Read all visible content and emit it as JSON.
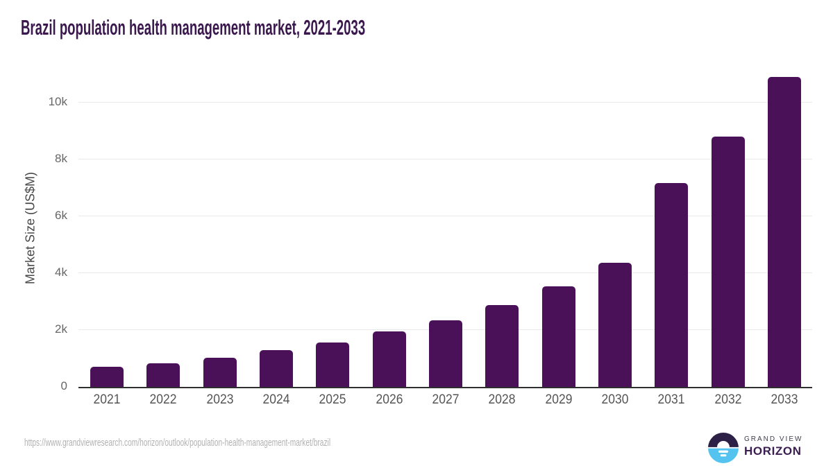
{
  "chart_data": {
    "type": "bar",
    "title": "Brazil population health management market, 2021-2033",
    "xlabel": "",
    "ylabel": "Market Size (US$M)",
    "categories": [
      "2021",
      "2022",
      "2023",
      "2024",
      "2025",
      "2026",
      "2027",
      "2028",
      "2029",
      "2030",
      "2031",
      "2032",
      "2033"
    ],
    "values": [
      700,
      840,
      1030,
      1290,
      1560,
      1950,
      2350,
      2890,
      3540,
      4370,
      7170,
      8810,
      10920
    ],
    "ytick_values": [
      0,
      2000,
      4000,
      6000,
      8000,
      10000
    ],
    "ytick_labels": [
      "0",
      "2k",
      "4k",
      "6k",
      "8k",
      "10k"
    ],
    "ylim": [
      0,
      11230
    ],
    "grid": true,
    "legend": false,
    "bar_color": "#4a1159",
    "gridline_color": "#e9e9e9",
    "axis_line_color": "#2f2f2f"
  },
  "footer": {
    "source_url": "https://www.grandviewresearch.com/horizon/outlook/population-health-management-market/brazil",
    "brand_line1": "GRAND VIEW",
    "brand_line2": "HORIZON",
    "brand_colors": {
      "icon_top": "#2d2047",
      "icon_bottom": "#55c3f0",
      "text_dark": "#3b1d52"
    }
  },
  "colors": {
    "title": "#3a184e",
    "tick_text": "#555555",
    "background": "#ffffff"
  }
}
